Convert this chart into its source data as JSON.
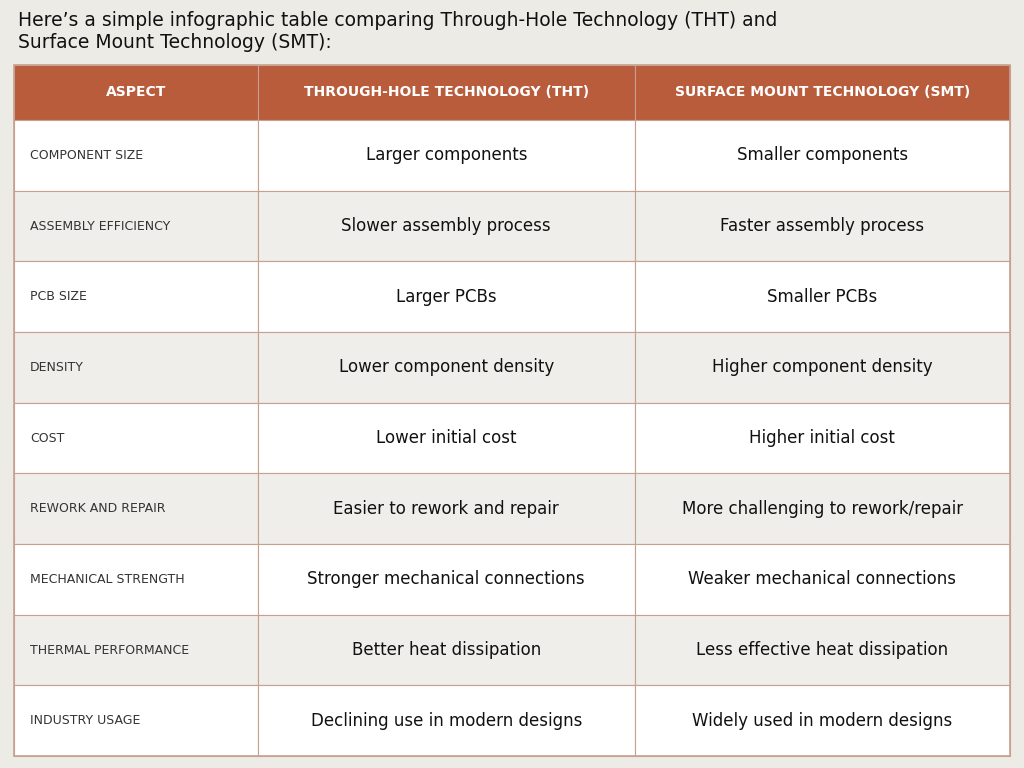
{
  "title_text": "Here’s a simple infographic table comparing Through-Hole Technology (THT) and\nSurface Mount Technology (SMT):",
  "header": [
    "ASPECT",
    "THROUGH-HOLE TECHNOLOGY (THT)",
    "SURFACE MOUNT TECHNOLOGY (SMT)"
  ],
  "rows": [
    [
      "COMPONENT SIZE",
      "Larger components",
      "Smaller components"
    ],
    [
      "ASSEMBLY EFFICIENCY",
      "Slower assembly process",
      "Faster assembly process"
    ],
    [
      "PCB SIZE",
      "Larger PCBs",
      "Smaller PCBs"
    ],
    [
      "DENSITY",
      "Lower component density",
      "Higher component density"
    ],
    [
      "COST",
      "Lower initial cost",
      "Higher initial cost"
    ],
    [
      "REWORK AND REPAIR",
      "Easier to rework and repair",
      "More challenging to rework/repair"
    ],
    [
      "MECHANICAL STRENGTH",
      "Stronger mechanical connections",
      "Weaker mechanical connections"
    ],
    [
      "THERMAL PERFORMANCE",
      "Better heat dissipation",
      "Less effective heat dissipation"
    ],
    [
      "INDUSTRY USAGE",
      "Declining use in modern designs",
      "Widely used in modern designs"
    ]
  ],
  "header_bg": "#B85C3C",
  "header_text_color": "#FFFFFF",
  "title_bg": "#EDEBE6",
  "title_text_color": "#111111",
  "row_bg_odd": "#FFFFFF",
  "row_bg_even": "#F0EEEA",
  "aspect_text_color": "#333333",
  "cell_text_color": "#111111",
  "border_color": "#C8A090",
  "fig_width": 10.24,
  "fig_height": 7.68,
  "title_fontsize": 13.5,
  "header_fontsize": 10,
  "aspect_fontsize": 9,
  "cell_fontsize": 12
}
